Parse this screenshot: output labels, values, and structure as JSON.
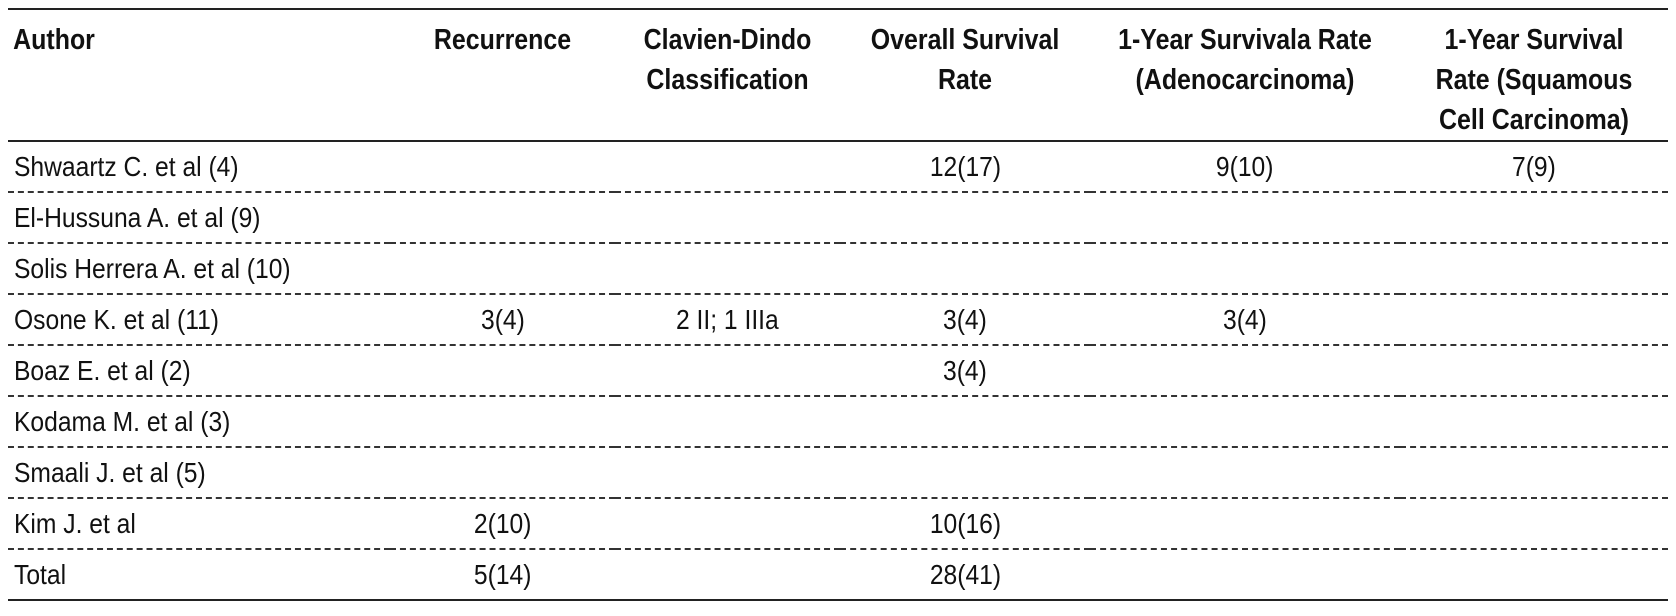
{
  "table": {
    "headers": [
      "Author",
      "Recurrence",
      "Clavien-Dindo Classification",
      "Overall Survival Rate",
      "1-Year Survivala Rate (Adenocarcinoma)",
      "1-Year Survival Rate (Squamous Cell Carcinoma)"
    ],
    "rows": [
      [
        "Shwaartz C. et al (4)",
        "",
        "",
        "12(17)",
        "9(10)",
        "7(9)"
      ],
      [
        "El-Hussuna A. et al (9)",
        "",
        "",
        "",
        "",
        ""
      ],
      [
        "Solis Herrera A. et al (10)",
        "",
        "",
        "",
        "",
        ""
      ],
      [
        "Osone K. et al (11)",
        "3(4)",
        "2 II; 1 IIIa",
        "3(4)",
        "3(4)",
        ""
      ],
      [
        "Boaz E. et al (2)",
        "",
        "",
        "3(4)",
        "",
        ""
      ],
      [
        "Kodama M. et al (3)",
        "",
        "",
        "",
        "",
        ""
      ],
      [
        "Smaali J. et al (5)",
        "",
        "",
        "",
        "",
        ""
      ],
      [
        "Kim J.  et al",
        "2(10)",
        "",
        "10(16)",
        "",
        ""
      ],
      [
        "Total",
        "5(14)",
        "",
        "28(41)",
        "",
        ""
      ]
    ]
  }
}
